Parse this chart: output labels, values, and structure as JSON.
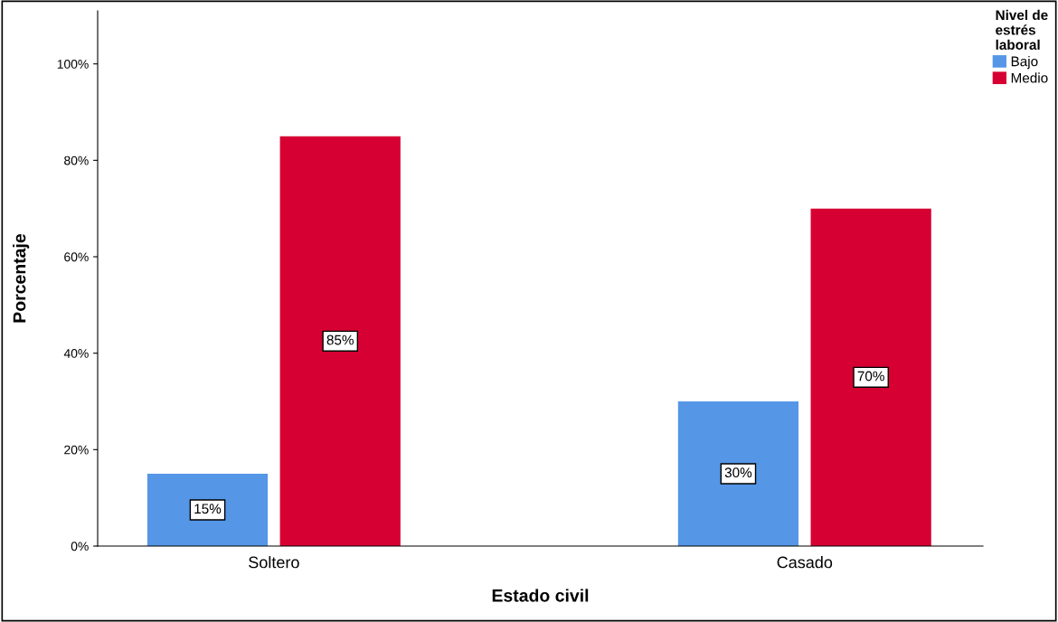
{
  "chart_data": {
    "type": "bar",
    "xlabel": "Estado civil",
    "ylabel": "Porcentaje",
    "legend_title": "Nivel de\nestrés\nlaboral",
    "categories": [
      "Soltero",
      "Casado"
    ],
    "series": [
      {
        "name": "Bajo",
        "color": "#5596e6",
        "values": [
          15,
          30
        ],
        "value_labels": [
          "15%",
          "30%"
        ]
      },
      {
        "name": "Medio",
        "color": "#d60032",
        "values": [
          85,
          70
        ],
        "value_labels": [
          "85%",
          "70%"
        ]
      }
    ],
    "ylim": [
      0,
      111
    ],
    "yticks": [
      {
        "value": 0,
        "label": "0%"
      },
      {
        "value": 20,
        "label": "20%"
      },
      {
        "value": 40,
        "label": "40%"
      },
      {
        "value": 60,
        "label": "60%"
      },
      {
        "value": 80,
        "label": "80%"
      },
      {
        "value": 100,
        "label": "100%"
      }
    ],
    "grid": false,
    "legend": "top right"
  }
}
